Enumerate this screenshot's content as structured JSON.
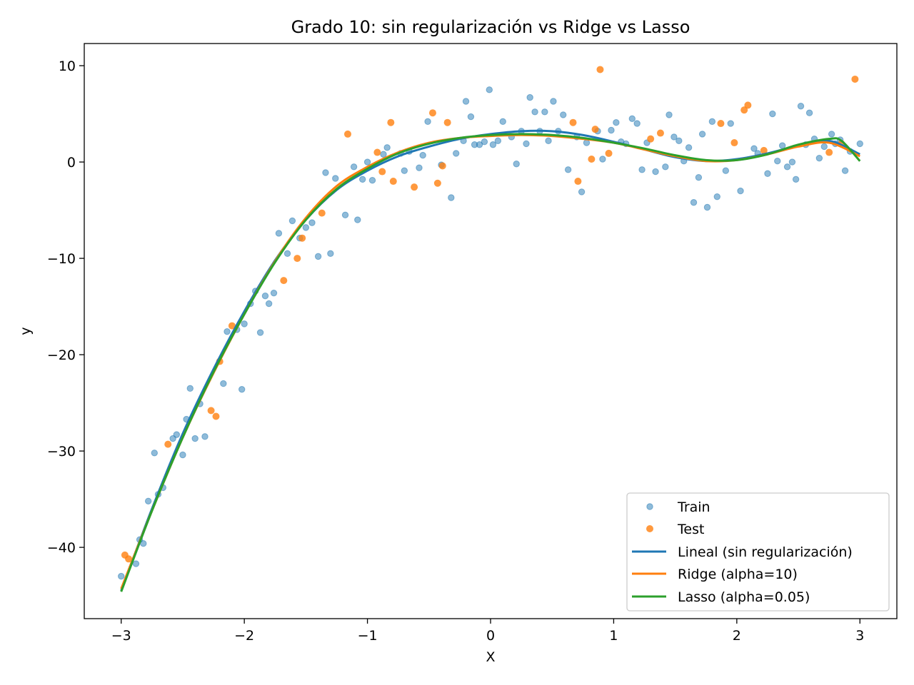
{
  "chart_data": {
    "type": "scatter",
    "title": "Grado 10: sin regularización vs Ridge vs Lasso",
    "xlabel": "X",
    "ylabel": "y",
    "xlim": [
      -3.3,
      3.3
    ],
    "ylim": [
      -47.4,
      12.3
    ],
    "xticks": [
      -3,
      -2,
      -1,
      0,
      1,
      2,
      3
    ],
    "yticks": [
      10,
      0,
      -10,
      -20,
      -30,
      -40
    ],
    "xtick_labels": [
      "−3",
      "−2",
      "−1",
      "0",
      "1",
      "2",
      "3"
    ],
    "ytick_labels": [
      "10",
      "0",
      "−10",
      "−20",
      "−30",
      "−40"
    ],
    "grid": false,
    "legend_position": "lower right",
    "legend": [
      "Train",
      "Test",
      "Lineal (sin regularización)",
      "Ridge (alpha=10)",
      "Lasso (alpha=0.05)"
    ],
    "colors": {
      "train": "#1f77b4",
      "test": "#ff7f0e",
      "lineal": "#1f77b4",
      "ridge": "#ff7f0e",
      "lasso": "#2ca02c"
    },
    "train": [
      [
        -3.0,
        -43.0
      ],
      [
        -2.85,
        -39.2
      ],
      [
        -2.88,
        -41.7
      ],
      [
        -2.82,
        -39.6
      ],
      [
        -2.78,
        -35.2
      ],
      [
        -2.73,
        -30.2
      ],
      [
        -2.7,
        -34.5
      ],
      [
        -2.66,
        -33.8
      ],
      [
        -2.58,
        -28.7
      ],
      [
        -2.55,
        -28.3
      ],
      [
        -2.5,
        -30.4
      ],
      [
        -2.47,
        -26.7
      ],
      [
        -2.44,
        -23.5
      ],
      [
        -2.4,
        -28.7
      ],
      [
        -2.36,
        -25.1
      ],
      [
        -2.32,
        -28.5
      ],
      [
        -2.17,
        -23.0
      ],
      [
        -2.14,
        -17.6
      ],
      [
        -2.06,
        -17.4
      ],
      [
        -2.02,
        -23.6
      ],
      [
        -2.0,
        -16.8
      ],
      [
        -1.95,
        -14.7
      ],
      [
        -1.91,
        -13.4
      ],
      [
        -1.87,
        -17.7
      ],
      [
        -1.83,
        -13.9
      ],
      [
        -1.8,
        -14.7
      ],
      [
        -1.76,
        -13.6
      ],
      [
        -1.72,
        -7.4
      ],
      [
        -1.65,
        -9.5
      ],
      [
        -1.61,
        -6.1
      ],
      [
        -1.55,
        -7.9
      ],
      [
        -1.5,
        -6.8
      ],
      [
        -1.45,
        -6.3
      ],
      [
        -1.4,
        -9.8
      ],
      [
        -1.34,
        -1.1
      ],
      [
        -1.3,
        -9.5
      ],
      [
        -1.26,
        -1.7
      ],
      [
        -1.18,
        -5.5
      ],
      [
        -1.11,
        -0.5
      ],
      [
        -1.08,
        -6.0
      ],
      [
        -1.04,
        -1.8
      ],
      [
        -1.0,
        0.0
      ],
      [
        -0.96,
        -1.9
      ],
      [
        -0.87,
        0.8
      ],
      [
        -0.84,
        1.5
      ],
      [
        -0.73,
        0.9
      ],
      [
        -0.7,
        -0.9
      ],
      [
        -0.66,
        1.1
      ],
      [
        -0.58,
        -0.6
      ],
      [
        -0.55,
        0.7
      ],
      [
        -0.51,
        4.2
      ],
      [
        -0.4,
        -0.3
      ],
      [
        -0.32,
        -3.7
      ],
      [
        -0.28,
        0.9
      ],
      [
        -0.22,
        2.2
      ],
      [
        -0.2,
        6.3
      ],
      [
        -0.16,
        4.7
      ],
      [
        -0.13,
        1.8
      ],
      [
        -0.09,
        1.8
      ],
      [
        -0.05,
        2.1
      ],
      [
        -0.01,
        7.5
      ],
      [
        0.02,
        1.8
      ],
      [
        0.06,
        2.2
      ],
      [
        0.1,
        4.2
      ],
      [
        0.17,
        2.6
      ],
      [
        0.21,
        -0.2
      ],
      [
        0.25,
        3.2
      ],
      [
        0.29,
        1.9
      ],
      [
        0.32,
        6.7
      ],
      [
        0.36,
        5.2
      ],
      [
        0.4,
        3.2
      ],
      [
        0.44,
        5.2
      ],
      [
        0.47,
        2.2
      ],
      [
        0.51,
        6.3
      ],
      [
        0.55,
        3.2
      ],
      [
        0.59,
        4.9
      ],
      [
        0.63,
        -0.8
      ],
      [
        0.7,
        2.6
      ],
      [
        0.74,
        -3.1
      ],
      [
        0.78,
        2.0
      ],
      [
        0.87,
        3.2
      ],
      [
        0.91,
        0.3
      ],
      [
        0.98,
        3.3
      ],
      [
        1.02,
        4.1
      ],
      [
        1.06,
        2.1
      ],
      [
        1.1,
        1.9
      ],
      [
        1.15,
        4.5
      ],
      [
        1.19,
        4.0
      ],
      [
        1.23,
        -0.8
      ],
      [
        1.27,
        2.0
      ],
      [
        1.34,
        -1.0
      ],
      [
        1.42,
        -0.5
      ],
      [
        1.45,
        4.9
      ],
      [
        1.49,
        2.6
      ],
      [
        1.53,
        2.2
      ],
      [
        1.57,
        0.1
      ],
      [
        1.61,
        1.5
      ],
      [
        1.65,
        -4.2
      ],
      [
        1.69,
        -1.6
      ],
      [
        1.72,
        2.9
      ],
      [
        1.76,
        -4.7
      ],
      [
        1.8,
        4.2
      ],
      [
        1.84,
        -3.6
      ],
      [
        1.91,
        -0.9
      ],
      [
        1.95,
        4.0
      ],
      [
        2.03,
        -3.0
      ],
      [
        2.14,
        1.4
      ],
      [
        2.17,
        0.9
      ],
      [
        2.25,
        -1.2
      ],
      [
        2.29,
        5.0
      ],
      [
        2.33,
        0.1
      ],
      [
        2.37,
        1.7
      ],
      [
        2.41,
        -0.5
      ],
      [
        2.45,
        0.0
      ],
      [
        2.48,
        -1.8
      ],
      [
        2.52,
        5.8
      ],
      [
        2.56,
        1.8
      ],
      [
        2.59,
        5.1
      ],
      [
        2.63,
        2.4
      ],
      [
        2.67,
        0.4
      ],
      [
        2.71,
        1.6
      ],
      [
        2.77,
        2.9
      ],
      [
        2.8,
        1.9
      ],
      [
        2.84,
        2.3
      ],
      [
        2.88,
        -0.9
      ],
      [
        2.92,
        1.1
      ],
      [
        3.0,
        1.9
      ]
    ],
    "test": [
      [
        -2.97,
        -40.8
      ],
      [
        -2.94,
        -41.2
      ],
      [
        -2.62,
        -29.3
      ],
      [
        -2.27,
        -25.8
      ],
      [
        -2.23,
        -26.4
      ],
      [
        -2.2,
        -20.7
      ],
      [
        -2.1,
        -17.0
      ],
      [
        -1.68,
        -12.3
      ],
      [
        -1.57,
        -10.0
      ],
      [
        -1.53,
        -7.9
      ],
      [
        -1.37,
        -5.3
      ],
      [
        -1.16,
        2.9
      ],
      [
        -0.92,
        1.0
      ],
      [
        -0.88,
        -1.0
      ],
      [
        -0.81,
        4.1
      ],
      [
        -0.79,
        -2.0
      ],
      [
        -0.62,
        -2.6
      ],
      [
        -0.47,
        5.1
      ],
      [
        -0.43,
        -2.2
      ],
      [
        -0.39,
        -0.4
      ],
      [
        -0.35,
        4.1
      ],
      [
        0.67,
        4.1
      ],
      [
        0.71,
        -2.0
      ],
      [
        0.82,
        0.3
      ],
      [
        0.85,
        3.4
      ],
      [
        0.89,
        9.6
      ],
      [
        0.96,
        0.9
      ],
      [
        1.3,
        2.4
      ],
      [
        1.38,
        3.0
      ],
      [
        1.87,
        4.0
      ],
      [
        1.98,
        2.0
      ],
      [
        2.06,
        5.4
      ],
      [
        2.09,
        5.9
      ],
      [
        2.22,
        1.2
      ],
      [
        2.75,
        1.0
      ],
      [
        2.85,
        1.9
      ],
      [
        2.96,
        8.6
      ]
    ],
    "series": [
      {
        "name": "Lineal (sin regularización)",
        "x": [
          -3.0,
          -2.75,
          -2.5,
          -2.25,
          -2.0,
          -1.75,
          -1.5,
          -1.25,
          -1.0,
          -0.75,
          -0.5,
          -0.25,
          0.0,
          0.25,
          0.5,
          0.75,
          1.0,
          1.25,
          1.5,
          1.75,
          2.0,
          2.25,
          2.5,
          2.75,
          3.0
        ],
        "y": [
          -44.5,
          -36.0,
          -28.2,
          -21.5,
          -15.5,
          -10.2,
          -6.0,
          -2.9,
          -0.9,
          0.6,
          1.6,
          2.4,
          2.9,
          3.2,
          3.2,
          2.8,
          2.1,
          1.3,
          0.5,
          0.1,
          0.3,
          0.9,
          1.7,
          2.2,
          0.8
        ]
      },
      {
        "name": "Ridge (alpha=10)",
        "x": [
          -3.0,
          -2.75,
          -2.5,
          -2.25,
          -2.0,
          -1.75,
          -1.5,
          -1.25,
          -1.0,
          -0.75,
          -0.5,
          -0.25,
          0.0,
          0.25,
          0.5,
          0.75,
          1.0,
          1.25,
          1.5,
          1.75,
          2.0,
          2.25,
          2.5,
          2.75,
          3.0
        ],
        "y": [
          -44.3,
          -36.2,
          -28.6,
          -21.9,
          -15.8,
          -10.3,
          -5.8,
          -2.5,
          -0.5,
          1.0,
          2.0,
          2.5,
          2.7,
          2.8,
          2.7,
          2.4,
          2.0,
          1.3,
          0.6,
          0.1,
          0.2,
          0.8,
          1.6,
          2.0,
          0.6
        ]
      },
      {
        "name": "Lasso (alpha=0.05)",
        "x": [
          -3.0,
          -2.75,
          -2.5,
          -2.25,
          -2.0,
          -1.75,
          -1.5,
          -1.25,
          -1.0,
          -0.75,
          -0.5,
          -0.25,
          0.0,
          0.25,
          0.5,
          0.75,
          1.0,
          1.25,
          1.5,
          1.75,
          2.0,
          2.25,
          2.5,
          2.75,
          2.85,
          3.0
        ],
        "y": [
          -44.6,
          -36.2,
          -28.6,
          -21.8,
          -15.8,
          -10.4,
          -6.0,
          -2.8,
          -0.7,
          0.9,
          1.9,
          2.5,
          2.8,
          2.9,
          2.8,
          2.5,
          2.0,
          1.4,
          0.7,
          0.2,
          0.2,
          0.8,
          1.8,
          2.4,
          2.2,
          0.1
        ]
      }
    ]
  }
}
